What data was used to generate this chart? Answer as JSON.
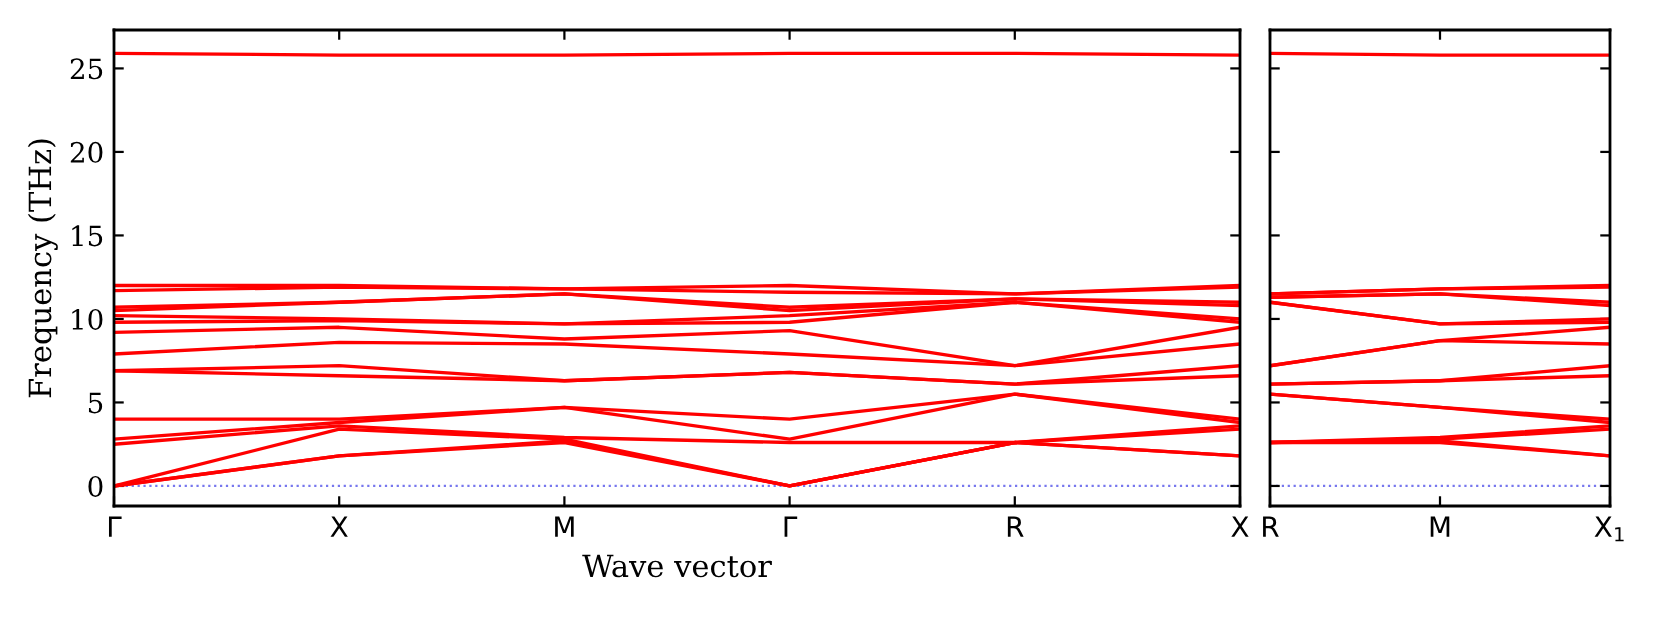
{
  "chart_data": [
    {
      "type": "line",
      "xlabel": "Wave vector",
      "ylabel": "Frequency (THz)",
      "categories": [
        "Γ",
        "X",
        "M",
        "Γ",
        "R",
        "X"
      ],
      "ylim": [
        -1.2,
        27.3
      ],
      "yticks": [
        0,
        5,
        10,
        15,
        20,
        25
      ],
      "ref_lines": [
        {
          "axis": "y",
          "value": 0,
          "color": "#7777ee",
          "line_style": "dotted"
        }
      ],
      "grid": false,
      "marker": "none",
      "line_style": "solid",
      "series": [
        {
          "color": "#ff0000",
          "values": [
            0,
            1.8,
            2.6,
            0,
            2.6,
            1.8
          ]
        },
        {
          "color": "#ff0000",
          "values": [
            0,
            1.8,
            2.7,
            0,
            2.6,
            1.8
          ]
        },
        {
          "color": "#ff0000",
          "values": [
            0,
            3.4,
            2.8,
            0,
            2.6,
            3.4
          ]
        },
        {
          "color": "#ff0000",
          "values": [
            2.5,
            3.6,
            2.9,
            2.6,
            2.6,
            3.6
          ]
        },
        {
          "color": "#ff0000",
          "values": [
            2.8,
            3.8,
            4.7,
            2.8,
            5.5,
            3.8
          ]
        },
        {
          "color": "#ff0000",
          "values": [
            4.0,
            4.0,
            4.7,
            4.0,
            5.5,
            4.0
          ]
        },
        {
          "color": "#ff0000",
          "values": [
            6.9,
            6.6,
            6.3,
            6.8,
            6.1,
            6.6
          ]
        },
        {
          "color": "#ff0000",
          "values": [
            6.9,
            7.2,
            6.3,
            6.8,
            6.1,
            7.2
          ]
        },
        {
          "color": "#ff0000",
          "values": [
            7.9,
            8.6,
            8.5,
            7.9,
            7.2,
            8.5
          ]
        },
        {
          "color": "#ff0000",
          "values": [
            9.2,
            9.5,
            8.8,
            9.3,
            7.2,
            9.5
          ]
        },
        {
          "color": "#ff0000",
          "values": [
            9.8,
            9.9,
            9.7,
            9.8,
            11.0,
            9.8
          ]
        },
        {
          "color": "#ff0000",
          "values": [
            10.2,
            10.0,
            9.7,
            10.2,
            11.0,
            10.0
          ]
        },
        {
          "color": "#ff0000",
          "values": [
            10.5,
            11.0,
            11.5,
            10.5,
            11.2,
            10.8
          ]
        },
        {
          "color": "#ff0000",
          "values": [
            10.7,
            11.0,
            11.5,
            10.7,
            11.2,
            11.0
          ]
        },
        {
          "color": "#ff0000",
          "values": [
            11.7,
            11.9,
            11.8,
            11.6,
            11.5,
            11.9
          ]
        },
        {
          "color": "#ff0000",
          "values": [
            12.0,
            12.0,
            11.8,
            12.0,
            11.5,
            12.0
          ]
        },
        {
          "color": "#ff0000",
          "values": [
            25.9,
            25.8,
            25.8,
            25.9,
            25.9,
            25.8
          ]
        }
      ]
    },
    {
      "type": "line",
      "categories": [
        "R",
        "M",
        "X$_{1}$"
      ],
      "ylim": [
        -1.2,
        27.3
      ],
      "yticks": [
        0,
        5,
        10,
        15,
        20,
        25
      ],
      "tick_labels": "x",
      "ref_lines": [
        {
          "axis": "y",
          "value": 0,
          "color": "#7777ee",
          "line_style": "dotted"
        }
      ],
      "grid": false,
      "marker": "none",
      "line_style": "solid",
      "series": [
        {
          "color": "#ff0000",
          "values": [
            2.6,
            2.6,
            1.8
          ]
        },
        {
          "color": "#ff0000",
          "values": [
            2.6,
            2.7,
            1.8
          ]
        },
        {
          "color": "#ff0000",
          "values": [
            2.6,
            2.8,
            3.4
          ]
        },
        {
          "color": "#ff0000",
          "values": [
            2.6,
            2.9,
            3.6
          ]
        },
        {
          "color": "#ff0000",
          "values": [
            5.5,
            4.7,
            3.8
          ]
        },
        {
          "color": "#ff0000",
          "values": [
            5.5,
            4.7,
            4.0
          ]
        },
        {
          "color": "#ff0000",
          "values": [
            6.1,
            6.3,
            6.6
          ]
        },
        {
          "color": "#ff0000",
          "values": [
            6.1,
            6.3,
            7.2
          ]
        },
        {
          "color": "#ff0000",
          "values": [
            7.2,
            8.7,
            8.5
          ]
        },
        {
          "color": "#ff0000",
          "values": [
            7.2,
            8.7,
            9.5
          ]
        },
        {
          "color": "#ff0000",
          "values": [
            11.0,
            9.7,
            9.8
          ]
        },
        {
          "color": "#ff0000",
          "values": [
            11.0,
            9.7,
            10.0
          ]
        },
        {
          "color": "#ff0000",
          "values": [
            11.3,
            11.5,
            10.8
          ]
        },
        {
          "color": "#ff0000",
          "values": [
            11.3,
            11.5,
            11.0
          ]
        },
        {
          "color": "#ff0000",
          "values": [
            11.5,
            11.8,
            11.9
          ]
        },
        {
          "color": "#ff0000",
          "values": [
            11.5,
            11.8,
            12.0
          ]
        },
        {
          "color": "#ff0000",
          "values": [
            25.9,
            25.8,
            25.8
          ]
        }
      ]
    }
  ]
}
